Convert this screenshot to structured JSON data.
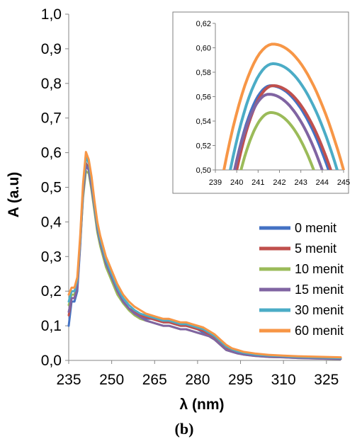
{
  "figure": {
    "panel_label": "(b)"
  },
  "chart_data": [
    {
      "type": "line",
      "xlabel": "λ (nm)",
      "ylabel": "A (a.u)",
      "xlim": [
        235,
        330
      ],
      "ylim": [
        0,
        1.0
      ],
      "xticks": [
        "235",
        "250",
        "265",
        "280",
        "295",
        "310",
        "325"
      ],
      "yticks": [
        "0,0",
        "0,1",
        "0,2",
        "0,3",
        "0,4",
        "0,5",
        "0,6",
        "0,7",
        "0,8",
        "0,9",
        "1,0"
      ],
      "legend_position": "right",
      "x": [
        235,
        236,
        237,
        238,
        239,
        240,
        241,
        242,
        243,
        244,
        245,
        246,
        247,
        248,
        249,
        250,
        252,
        254,
        256,
        258,
        260,
        262,
        264,
        266,
        268,
        270,
        272,
        274,
        276,
        278,
        280,
        282,
        284,
        286,
        288,
        290,
        292,
        294,
        296,
        300,
        305,
        310,
        315,
        320,
        325,
        330
      ],
      "series": [
        {
          "name": "0 menit",
          "color": "#4472C4",
          "values": [
            0.1,
            0.17,
            0.17,
            0.2,
            0.33,
            0.48,
            0.57,
            0.55,
            0.5,
            0.44,
            0.38,
            0.34,
            0.31,
            0.28,
            0.26,
            0.24,
            0.2,
            0.17,
            0.15,
            0.14,
            0.13,
            0.12,
            0.12,
            0.115,
            0.11,
            0.11,
            0.105,
            0.1,
            0.1,
            0.095,
            0.09,
            0.08,
            0.075,
            0.065,
            0.05,
            0.035,
            0.028,
            0.023,
            0.02,
            0.015,
            0.012,
            0.01,
            0.008,
            0.007,
            0.006,
            0.005
          ]
        },
        {
          "name": "5 menit",
          "color": "#C0504D",
          "values": [
            0.13,
            0.18,
            0.18,
            0.21,
            0.34,
            0.49,
            0.57,
            0.555,
            0.5,
            0.44,
            0.38,
            0.34,
            0.31,
            0.28,
            0.26,
            0.24,
            0.2,
            0.17,
            0.15,
            0.14,
            0.13,
            0.125,
            0.12,
            0.115,
            0.11,
            0.11,
            0.105,
            0.1,
            0.1,
            0.095,
            0.09,
            0.085,
            0.075,
            0.065,
            0.05,
            0.035,
            0.028,
            0.023,
            0.02,
            0.015,
            0.012,
            0.01,
            0.008,
            0.007,
            0.006,
            0.005
          ]
        },
        {
          "name": "10 menit",
          "color": "#9BBB59",
          "values": [
            0.16,
            0.19,
            0.19,
            0.22,
            0.34,
            0.47,
            0.547,
            0.54,
            0.49,
            0.43,
            0.37,
            0.33,
            0.3,
            0.27,
            0.25,
            0.23,
            0.19,
            0.165,
            0.145,
            0.13,
            0.12,
            0.115,
            0.11,
            0.105,
            0.1,
            0.1,
            0.095,
            0.09,
            0.09,
            0.085,
            0.08,
            0.075,
            0.07,
            0.06,
            0.045,
            0.03,
            0.025,
            0.02,
            0.017,
            0.013,
            0.01,
            0.009,
            0.007,
            0.006,
            0.005,
            0.004
          ]
        },
        {
          "name": "15 menit",
          "color": "#8064A2",
          "values": [
            0.14,
            0.18,
            0.18,
            0.21,
            0.34,
            0.48,
            0.562,
            0.55,
            0.5,
            0.44,
            0.38,
            0.34,
            0.31,
            0.28,
            0.26,
            0.24,
            0.2,
            0.17,
            0.15,
            0.135,
            0.125,
            0.115,
            0.11,
            0.105,
            0.1,
            0.1,
            0.095,
            0.09,
            0.09,
            0.085,
            0.08,
            0.075,
            0.07,
            0.06,
            0.045,
            0.03,
            0.025,
            0.02,
            0.017,
            0.013,
            0.01,
            0.009,
            0.007,
            0.006,
            0.005,
            0.004
          ]
        },
        {
          "name": "30 menit",
          "color": "#4BACC6",
          "values": [
            0.17,
            0.2,
            0.2,
            0.23,
            0.35,
            0.5,
            0.586,
            0.57,
            0.52,
            0.45,
            0.39,
            0.35,
            0.32,
            0.29,
            0.27,
            0.25,
            0.21,
            0.18,
            0.16,
            0.145,
            0.135,
            0.13,
            0.125,
            0.12,
            0.115,
            0.115,
            0.11,
            0.105,
            0.105,
            0.1,
            0.095,
            0.09,
            0.08,
            0.07,
            0.055,
            0.04,
            0.032,
            0.026,
            0.022,
            0.017,
            0.014,
            0.012,
            0.01,
            0.009,
            0.008,
            0.007
          ]
        },
        {
          "name": "60 menit",
          "color": "#F79646",
          "values": [
            0.19,
            0.21,
            0.21,
            0.24,
            0.36,
            0.51,
            0.602,
            0.58,
            0.53,
            0.46,
            0.4,
            0.36,
            0.33,
            0.3,
            0.28,
            0.26,
            0.22,
            0.19,
            0.17,
            0.155,
            0.145,
            0.135,
            0.13,
            0.125,
            0.12,
            0.12,
            0.115,
            0.11,
            0.11,
            0.105,
            0.1,
            0.095,
            0.085,
            0.075,
            0.06,
            0.045,
            0.035,
            0.03,
            0.025,
            0.02,
            0.016,
            0.014,
            0.012,
            0.011,
            0.01,
            0.009
          ]
        }
      ]
    },
    {
      "type": "line",
      "inset": true,
      "xlim": [
        239,
        245
      ],
      "ylim": [
        0.5,
        0.62
      ],
      "xticks": [
        "239",
        "240",
        "241",
        "242",
        "243",
        "244",
        "245"
      ],
      "yticks": [
        "0,50",
        "0,52",
        "0,54",
        "0,56",
        "0,58",
        "0,60",
        "0,62"
      ],
      "series": [
        {
          "name": "0 menit",
          "color": "#4472C4",
          "peak_x": 241.6,
          "peak_y": 0.569,
          "x_start": 239.9,
          "x_end": 244.3
        },
        {
          "name": "5 menit",
          "color": "#C0504D",
          "peak_x": 241.7,
          "peak_y": 0.569,
          "x_start": 240.0,
          "x_end": 244.4
        },
        {
          "name": "10 menit",
          "color": "#9BBB59",
          "peak_x": 241.6,
          "peak_y": 0.547,
          "x_start": 240.2,
          "x_end": 243.6
        },
        {
          "name": "15 menit",
          "color": "#8064A2",
          "peak_x": 241.5,
          "peak_y": 0.562,
          "x_start": 239.9,
          "x_end": 244.0
        },
        {
          "name": "30 menit",
          "color": "#4BACC6",
          "peak_x": 241.7,
          "peak_y": 0.587,
          "x_start": 239.7,
          "x_end": 244.7
        },
        {
          "name": "60 menit",
          "color": "#F79646",
          "peak_x": 241.7,
          "peak_y": 0.603,
          "x_start": 239.4,
          "x_end": 245.0
        }
      ]
    }
  ]
}
